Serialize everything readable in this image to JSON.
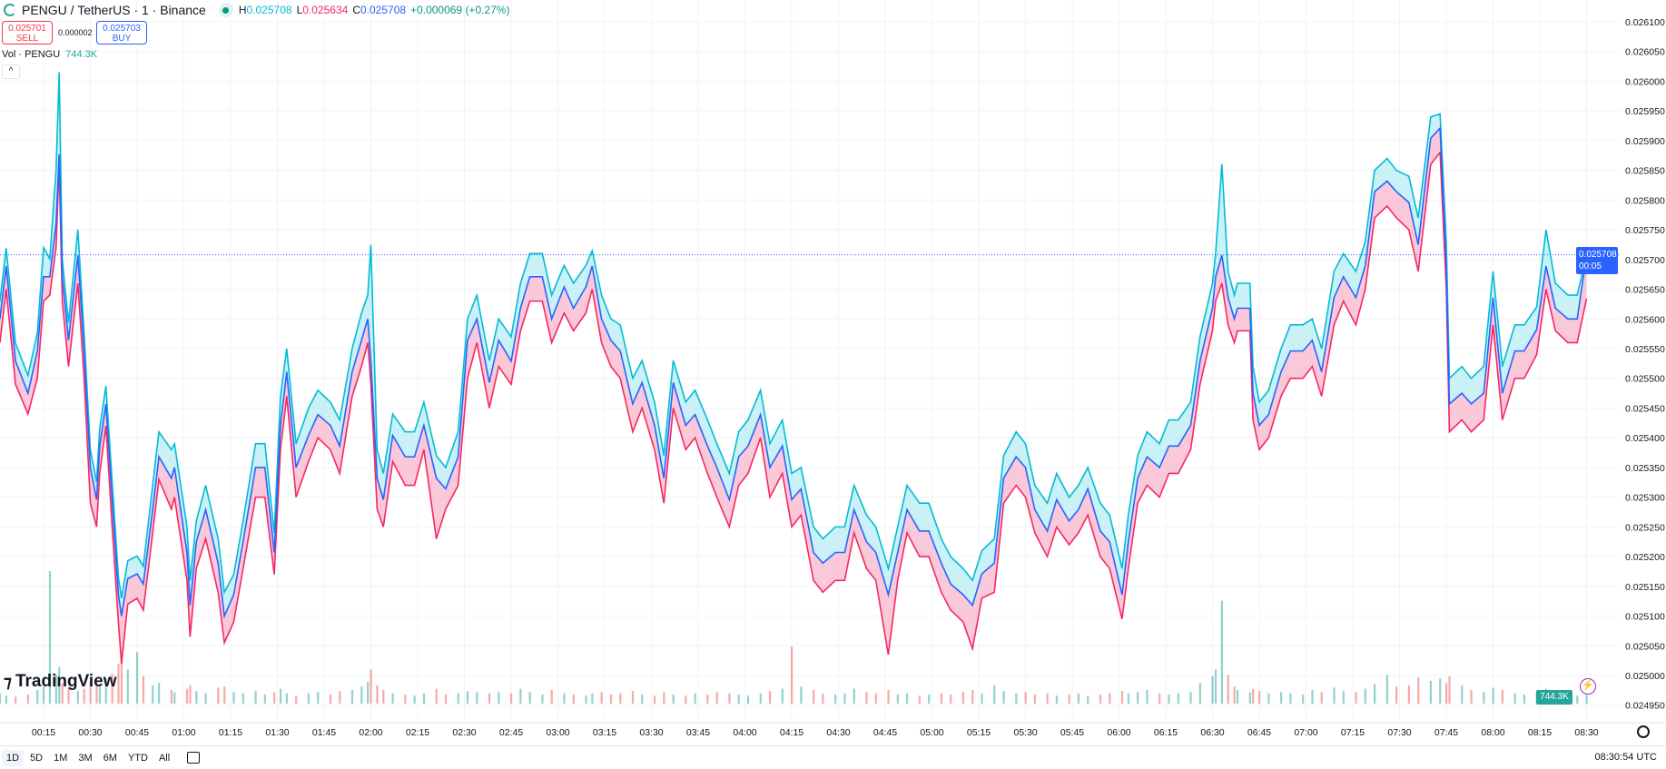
{
  "header": {
    "title": "PENGU / TetherUS · 1 · Binance",
    "h_label": "H",
    "h": "0.025708",
    "l_label": "L",
    "l": "0.025634",
    "c_label": "C",
    "c": "0.025708",
    "change": "+0.000069 (+0.27%)"
  },
  "trade": {
    "sell_price": "0.025701",
    "sell_label": "SELL",
    "spread": "0.000002",
    "buy_price": "0.025703",
    "buy_label": "BUY"
  },
  "volume_legend": {
    "label": "Vol · PENGU",
    "value": "744.3K"
  },
  "collapse_label": "^",
  "watermark": "TradingView",
  "price_tag": {
    "price": "0.025708",
    "countdown": "00:05"
  },
  "volume_tag": "744.3K",
  "bottom": {
    "ranges": [
      "1D",
      "5D",
      "1M",
      "3M",
      "6M",
      "YTD",
      "All"
    ],
    "active": "1D",
    "clock": "08:30:54 UTC"
  },
  "colors": {
    "high": "#00bcd4",
    "close": "#2962ff",
    "low": "#f7285e",
    "high_fill": "#b2ebf2",
    "low_fill": "#f8bbd0",
    "vol_up": "#26a69a",
    "vol_down": "#ef5350"
  },
  "chart_data": {
    "type": "area",
    "style": "HLC area",
    "interval": "1 minute",
    "ylim": [
      0.02494,
      0.02611
    ],
    "grid": true,
    "y_ticks": [
      "0.026100",
      "0.026050",
      "0.026000",
      "0.025950",
      "0.025900",
      "0.025850",
      "0.025800",
      "0.025750",
      "0.025700",
      "0.025650",
      "0.025600",
      "0.025550",
      "0.025500",
      "0.025450",
      "0.025400",
      "0.025350",
      "0.025300",
      "0.025250",
      "0.025200",
      "0.025150",
      "0.025100",
      "0.025050",
      "0.025000",
      "0.024950"
    ],
    "x_ticks": [
      "00:15",
      "00:30",
      "00:45",
      "01:00",
      "01:15",
      "01:30",
      "01:45",
      "02:00",
      "02:15",
      "02:30",
      "02:45",
      "03:00",
      "03:15",
      "03:30",
      "03:45",
      "04:00",
      "04:15",
      "04:30",
      "04:45",
      "05:00",
      "05:15",
      "05:30",
      "05:45",
      "06:00",
      "06:15",
      "06:30",
      "06:45",
      "07:00",
      "07:15",
      "07:30",
      "07:45",
      "08:00",
      "08:15",
      "08:30"
    ],
    "columns": [
      "time",
      "high",
      "close",
      "low",
      "volume_k"
    ],
    "points": [
      [
        "00:01",
        0.02563,
        0.0256,
        0.02556,
        900
      ],
      [
        "00:03",
        0.025719,
        0.025689,
        0.02565,
        700
      ],
      [
        "00:06",
        0.025559,
        0.025529,
        0.02549,
        600
      ],
      [
        "00:10",
        0.025505,
        0.025475,
        0.02544,
        800
      ],
      [
        "00:13",
        0.025576,
        0.025546,
        0.0255,
        1200
      ],
      [
        "00:15",
        0.02572,
        0.025671,
        0.02563,
        1500
      ],
      [
        "00:17",
        0.025701,
        0.025671,
        0.02564,
        11600
      ],
      [
        "00:19",
        0.02585,
        0.02576,
        0.02572,
        2500
      ],
      [
        "00:20",
        0.026015,
        0.025877,
        0.02586,
        3200
      ],
      [
        "00:21",
        0.025701,
        0.025671,
        0.02563,
        1800
      ],
      [
        "00:23",
        0.025594,
        0.025564,
        0.02552,
        1400
      ],
      [
        "00:26",
        0.02575,
        0.025707,
        0.02566,
        1100
      ],
      [
        "00:28",
        0.025576,
        0.025546,
        0.0255,
        1300
      ],
      [
        "00:30",
        0.02538,
        0.02535,
        0.02529,
        2000
      ],
      [
        "00:32",
        0.025326,
        0.025296,
        0.02525,
        1700
      ],
      [
        "00:33",
        0.025416,
        0.025386,
        0.02534,
        1500
      ],
      [
        "00:35",
        0.025487,
        0.025457,
        0.02542,
        2200
      ],
      [
        "00:37",
        0.025326,
        0.025296,
        0.02525,
        2600
      ],
      [
        "00:39",
        0.025166,
        0.025136,
        0.02509,
        3500
      ],
      [
        "00:40",
        0.02513,
        0.0251,
        0.02502,
        5000
      ],
      [
        "00:42",
        0.025193,
        0.025163,
        0.02512,
        3000
      ],
      [
        "00:45",
        0.025201,
        0.025171,
        0.02513,
        4500
      ],
      [
        "00:47",
        0.025184,
        0.025154,
        0.02511,
        2400
      ],
      [
        "00:50",
        0.02532,
        0.025279,
        0.02524,
        1600
      ],
      [
        "00:52",
        0.02541,
        0.025368,
        0.02533,
        1800
      ],
      [
        "00:56",
        0.02538,
        0.025332,
        0.02528,
        1200
      ],
      [
        "00:57",
        0.02539,
        0.02535,
        0.0253,
        1000
      ],
      [
        "01:01",
        0.02525,
        0.025207,
        0.02516,
        1300
      ],
      [
        "01:02",
        0.02516,
        0.025118,
        0.025065,
        1600
      ],
      [
        "01:04",
        0.02526,
        0.025225,
        0.02518,
        1100
      ],
      [
        "01:07",
        0.02532,
        0.025279,
        0.02523,
        900
      ],
      [
        "01:11",
        0.02523,
        0.025189,
        0.02514,
        1400
      ],
      [
        "01:13",
        0.02514,
        0.0251,
        0.025055,
        1500
      ],
      [
        "01:16",
        0.02517,
        0.025136,
        0.02509,
        1000
      ],
      [
        "01:19",
        0.02526,
        0.025225,
        0.02518,
        900
      ],
      [
        "01:23",
        0.02539,
        0.02535,
        0.0253,
        1100
      ],
      [
        "01:26",
        0.02539,
        0.02535,
        0.0253,
        800
      ],
      [
        "01:29",
        0.02524,
        0.025207,
        0.02517,
        1000
      ],
      [
        "01:31",
        0.02547,
        0.025421,
        0.02538,
        1300
      ],
      [
        "01:33",
        0.02555,
        0.025511,
        0.02547,
        900
      ],
      [
        "01:36",
        0.02539,
        0.02535,
        0.0253,
        700
      ],
      [
        "01:40",
        0.02545,
        0.025404,
        0.02536,
        900
      ],
      [
        "01:43",
        0.02548,
        0.025439,
        0.0254,
        1000
      ],
      [
        "01:47",
        0.02546,
        0.025421,
        0.02538,
        800
      ],
      [
        "01:50",
        0.02543,
        0.025386,
        0.02534,
        1100
      ],
      [
        "01:54",
        0.02555,
        0.025511,
        0.02547,
        1200
      ],
      [
        "01:57",
        0.02561,
        0.025564,
        0.02552,
        1500
      ],
      [
        "01:59",
        0.02564,
        0.0256,
        0.02556,
        1900
      ],
      [
        "02:00",
        0.025725,
        0.025529,
        0.02549,
        3000
      ],
      [
        "02:02",
        0.02538,
        0.025332,
        0.02528,
        1600
      ],
      [
        "02:04",
        0.02534,
        0.025296,
        0.02525,
        1200
      ],
      [
        "02:07",
        0.02544,
        0.025404,
        0.02536,
        900
      ],
      [
        "02:11",
        0.02541,
        0.025368,
        0.02532,
        800
      ],
      [
        "02:14",
        0.02541,
        0.025368,
        0.02532,
        700
      ],
      [
        "02:17",
        0.02546,
        0.025421,
        0.02538,
        900
      ],
      [
        "02:21",
        0.02537,
        0.025332,
        0.02523,
        1300
      ],
      [
        "02:24",
        0.02535,
        0.025314,
        0.02528,
        800
      ],
      [
        "02:28",
        0.02541,
        0.025368,
        0.02532,
        900
      ],
      [
        "02:31",
        0.0256,
        0.025564,
        0.0255,
        1100
      ],
      [
        "02:34",
        0.02564,
        0.0256,
        0.02556,
        1000
      ],
      [
        "02:38",
        0.02553,
        0.025493,
        0.02545,
        900
      ],
      [
        "02:41",
        0.0256,
        0.025564,
        0.02552,
        1000
      ],
      [
        "02:45",
        0.02557,
        0.025529,
        0.02549,
        900
      ],
      [
        "02:48",
        0.02566,
        0.025618,
        0.02558,
        1300
      ],
      [
        "02:51",
        0.02571,
        0.025671,
        0.02563,
        1000
      ],
      [
        "02:55",
        0.02571,
        0.025671,
        0.02563,
        800
      ],
      [
        "02:58",
        0.02564,
        0.0256,
        0.02556,
        1200
      ],
      [
        "03:02",
        0.02569,
        0.025654,
        0.02561,
        900
      ],
      [
        "03:05",
        0.02566,
        0.025618,
        0.02558,
        800
      ],
      [
        "03:09",
        0.02569,
        0.025654,
        0.02561,
        700
      ],
      [
        "03:11",
        0.025715,
        0.025689,
        0.02565,
        900
      ],
      [
        "03:14",
        0.02564,
        0.0256,
        0.02556,
        1000
      ],
      [
        "03:17",
        0.0256,
        0.025564,
        0.02552,
        800
      ],
      [
        "03:20",
        0.02559,
        0.025546,
        0.0255,
        900
      ],
      [
        "03:24",
        0.0255,
        0.025457,
        0.02541,
        1100
      ],
      [
        "03:27",
        0.02553,
        0.025493,
        0.02545,
        800
      ],
      [
        "03:31",
        0.02546,
        0.025421,
        0.02538,
        700
      ],
      [
        "03:34",
        0.02537,
        0.025332,
        0.02529,
        1000
      ],
      [
        "03:37",
        0.02553,
        0.025493,
        0.02545,
        800
      ],
      [
        "03:41",
        0.02546,
        0.025421,
        0.02538,
        700
      ],
      [
        "03:44",
        0.02548,
        0.025439,
        0.0254,
        900
      ],
      [
        "03:48",
        0.02543,
        0.025386,
        0.02534,
        800
      ],
      [
        "03:51",
        0.02539,
        0.02535,
        0.0253,
        1000
      ],
      [
        "03:55",
        0.02534,
        0.025296,
        0.02525,
        900
      ],
      [
        "03:58",
        0.02541,
        0.025368,
        0.02532,
        800
      ],
      [
        "04:01",
        0.02543,
        0.025386,
        0.02534,
        700
      ],
      [
        "04:05",
        0.02548,
        0.025439,
        0.0254,
        900
      ],
      [
        "04:08",
        0.02539,
        0.02535,
        0.0253,
        1100
      ],
      [
        "04:12",
        0.02543,
        0.025386,
        0.02534,
        1300
      ],
      [
        "04:15",
        0.02534,
        0.025296,
        0.02525,
        5000
      ],
      [
        "04:18",
        0.02535,
        0.025314,
        0.02527,
        1500
      ],
      [
        "04:22",
        0.02525,
        0.025207,
        0.02516,
        1200
      ],
      [
        "04:25",
        0.02523,
        0.025189,
        0.02514,
        900
      ],
      [
        "04:29",
        0.02525,
        0.025207,
        0.02516,
        800
      ],
      [
        "04:32",
        0.02525,
        0.025207,
        0.02516,
        900
      ],
      [
        "04:35",
        0.02532,
        0.025279,
        0.02524,
        1300
      ],
      [
        "04:39",
        0.02527,
        0.025225,
        0.02518,
        1000
      ],
      [
        "04:42",
        0.02525,
        0.025207,
        0.02516,
        900
      ],
      [
        "04:46",
        0.02518,
        0.025136,
        0.025035,
        1200
      ],
      [
        "04:49",
        0.02525,
        0.025207,
        0.02516,
        800
      ],
      [
        "04:52",
        0.02532,
        0.025279,
        0.02524,
        900
      ],
      [
        "04:56",
        0.02529,
        0.025243,
        0.0252,
        700
      ],
      [
        "04:59",
        0.02529,
        0.025243,
        0.0252,
        800
      ],
      [
        "05:03",
        0.02523,
        0.025189,
        0.02514,
        900
      ],
      [
        "05:06",
        0.0252,
        0.025154,
        0.02511,
        800
      ],
      [
        "05:10",
        0.02518,
        0.025136,
        0.02509,
        1000
      ],
      [
        "05:13",
        0.02516,
        0.025118,
        0.025045,
        1200
      ],
      [
        "05:16",
        0.02521,
        0.025171,
        0.02513,
        900
      ],
      [
        "05:20",
        0.02523,
        0.025189,
        0.02514,
        1600
      ],
      [
        "05:23",
        0.02537,
        0.025332,
        0.02529,
        1100
      ],
      [
        "05:27",
        0.02541,
        0.025368,
        0.02532,
        900
      ],
      [
        "05:30",
        0.02539,
        0.02535,
        0.0253,
        1000
      ],
      [
        "05:33",
        0.02532,
        0.025279,
        0.02524,
        800
      ],
      [
        "05:37",
        0.02529,
        0.025243,
        0.0252,
        900
      ],
      [
        "05:40",
        0.02534,
        0.025296,
        0.02525,
        700
      ],
      [
        "05:44",
        0.0253,
        0.02526,
        0.02522,
        800
      ],
      [
        "05:47",
        0.02532,
        0.025279,
        0.02524,
        900
      ],
      [
        "05:50",
        0.02535,
        0.025314,
        0.02527,
        700
      ],
      [
        "05:54",
        0.02529,
        0.025243,
        0.0252,
        800
      ],
      [
        "05:57",
        0.02527,
        0.025225,
        0.02518,
        900
      ],
      [
        "06:01",
        0.02518,
        0.025136,
        0.025095,
        1100
      ],
      [
        "06:03",
        0.02527,
        0.025225,
        0.02518,
        900
      ],
      [
        "06:06",
        0.02537,
        0.025332,
        0.02529,
        1000
      ],
      [
        "06:09",
        0.02541,
        0.025368,
        0.02532,
        1200
      ],
      [
        "06:13",
        0.02539,
        0.02535,
        0.0253,
        900
      ],
      [
        "06:16",
        0.02543,
        0.025386,
        0.02534,
        800
      ],
      [
        "06:19",
        0.02543,
        0.025386,
        0.02534,
        900
      ],
      [
        "06:23",
        0.02546,
        0.025421,
        0.02538,
        1000
      ],
      [
        "06:26",
        0.02557,
        0.025529,
        0.02549,
        1800
      ],
      [
        "06:30",
        0.02566,
        0.025618,
        0.02558,
        2400
      ],
      [
        "06:31",
        0.02571,
        0.025671,
        0.02563,
        3000
      ],
      [
        "06:33",
        0.02586,
        0.025707,
        0.02566,
        9000
      ],
      [
        "06:35",
        0.02568,
        0.025636,
        0.02559,
        2500
      ],
      [
        "06:37",
        0.02564,
        0.0256,
        0.02556,
        1500
      ],
      [
        "06:38",
        0.02566,
        0.025618,
        0.02558,
        1200
      ],
      [
        "06:42",
        0.02566,
        0.025618,
        0.02558,
        1000
      ],
      [
        "06:43",
        0.02552,
        0.025475,
        0.02543,
        1300
      ],
      [
        "06:45",
        0.02546,
        0.025421,
        0.02538,
        1100
      ],
      [
        "06:48",
        0.02548,
        0.025439,
        0.0254,
        900
      ],
      [
        "06:52",
        0.02555,
        0.025511,
        0.02547,
        1000
      ],
      [
        "06:55",
        0.02559,
        0.025546,
        0.0255,
        900
      ],
      [
        "06:59",
        0.02559,
        0.025546,
        0.0255,
        800
      ],
      [
        "07:02",
        0.0256,
        0.025564,
        0.02552,
        1200
      ],
      [
        "07:05",
        0.02555,
        0.025511,
        0.02547,
        1000
      ],
      [
        "07:09",
        0.02568,
        0.025636,
        0.02559,
        1400
      ],
      [
        "07:12",
        0.02571,
        0.025671,
        0.02563,
        1100
      ],
      [
        "07:16",
        0.02568,
        0.025636,
        0.02559,
        1000
      ],
      [
        "07:19",
        0.02573,
        0.025689,
        0.02565,
        1300
      ],
      [
        "07:22",
        0.02585,
        0.025814,
        0.02577,
        1700
      ],
      [
        "07:26",
        0.02587,
        0.025832,
        0.02579,
        2500
      ],
      [
        "07:29",
        0.02585,
        0.025814,
        0.02577,
        1500
      ],
      [
        "07:33",
        0.02584,
        0.025796,
        0.02575,
        1600
      ],
      [
        "07:36",
        0.02577,
        0.025725,
        0.02568,
        2300
      ],
      [
        "07:40",
        0.02594,
        0.025904,
        0.02586,
        2000
      ],
      [
        "07:43",
        0.025945,
        0.025921,
        0.02588,
        2200
      ],
      [
        "07:45",
        0.02573,
        0.025689,
        0.02565,
        1800
      ],
      [
        "07:46",
        0.0255,
        0.025457,
        0.02541,
        2400
      ],
      [
        "07:50",
        0.02552,
        0.025475,
        0.02543,
        1600
      ],
      [
        "07:53",
        0.0255,
        0.025457,
        0.02541,
        1200
      ],
      [
        "07:57",
        0.02552,
        0.025475,
        0.02543,
        1000
      ],
      [
        "08:00",
        0.02568,
        0.025636,
        0.02559,
        1400
      ],
      [
        "08:03",
        0.02552,
        0.025475,
        0.02543,
        1200
      ],
      [
        "08:07",
        0.02559,
        0.025546,
        0.0255,
        900
      ],
      [
        "08:10",
        0.02559,
        0.025546,
        0.0255,
        800
      ],
      [
        "08:14",
        0.02562,
        0.025582,
        0.02554,
        1000
      ],
      [
        "08:17",
        0.02575,
        0.025689,
        0.02565,
        1300
      ],
      [
        "08:20",
        0.02566,
        0.025618,
        0.02558,
        900
      ],
      [
        "08:24",
        0.02564,
        0.0256,
        0.02556,
        800
      ],
      [
        "08:27",
        0.02564,
        0.0256,
        0.02556,
        700
      ],
      [
        "08:30",
        0.025708,
        0.025708,
        0.025634,
        744.3
      ]
    ]
  }
}
